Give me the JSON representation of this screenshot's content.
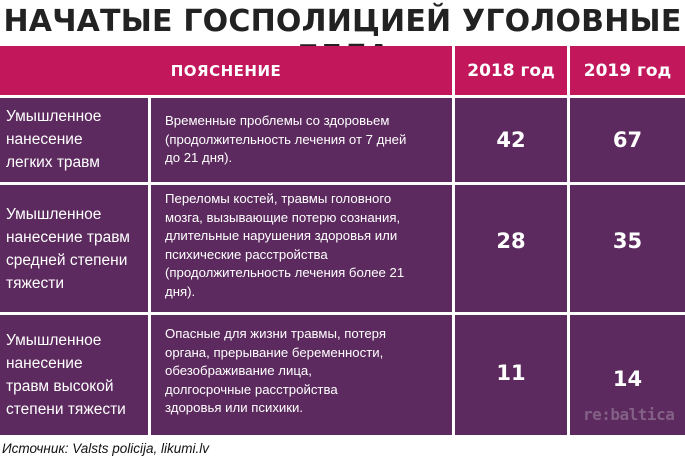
{
  "title": "НАЧАТЫЕ ГОСПОЛИЦИЕЙ УГОЛОВНЫЕ ДЕЛА",
  "header": {
    "explanation": "ПОЯСНЕНИЕ",
    "year_2018": "2018 год",
    "year_2019": "2019 год"
  },
  "rows": [
    {
      "category_lines": [
        "Умышленное",
        "нанесение",
        "легких травм"
      ],
      "description_lines": [
        "Временные проблемы со здоровьем",
        "(продолжительность лечения от 7 дней",
        "до 21 дня)."
      ],
      "v2018": "42",
      "v2019": "67"
    },
    {
      "category_lines": [
        "Умышленное",
        "нанесение травм",
        "средней степени",
        "тяжести"
      ],
      "description_lines": [
        "Переломы костей, травмы головного",
        "мозга, вызывающие потерю сознания,",
        "длительные нарушения здоровья или",
        "психические расстройства",
        "(продолжительность лечения более 21",
        "дня)."
      ],
      "v2018": "28",
      "v2019": "35"
    },
    {
      "category_lines": [
        "Умышленное",
        "нанесение",
        "травм высокой",
        "степени тяжести"
      ],
      "description_lines": [
        "Опасные для жизни травмы, потеря",
        "органа, прерывание беременности,",
        "обезображивание лица,",
        "долгосрочные расстройства",
        "здоровья или психики."
      ],
      "v2018": "11",
      "v2019": "14"
    }
  ],
  "source": "Источник: Valsts policija, likumi.lv",
  "logo_text": "re:baltica",
  "colors": {
    "header_bg": "#c2185b",
    "cell_bg": "#5c2a5e",
    "text_light": "#ffffff",
    "title_text": "#222222"
  }
}
